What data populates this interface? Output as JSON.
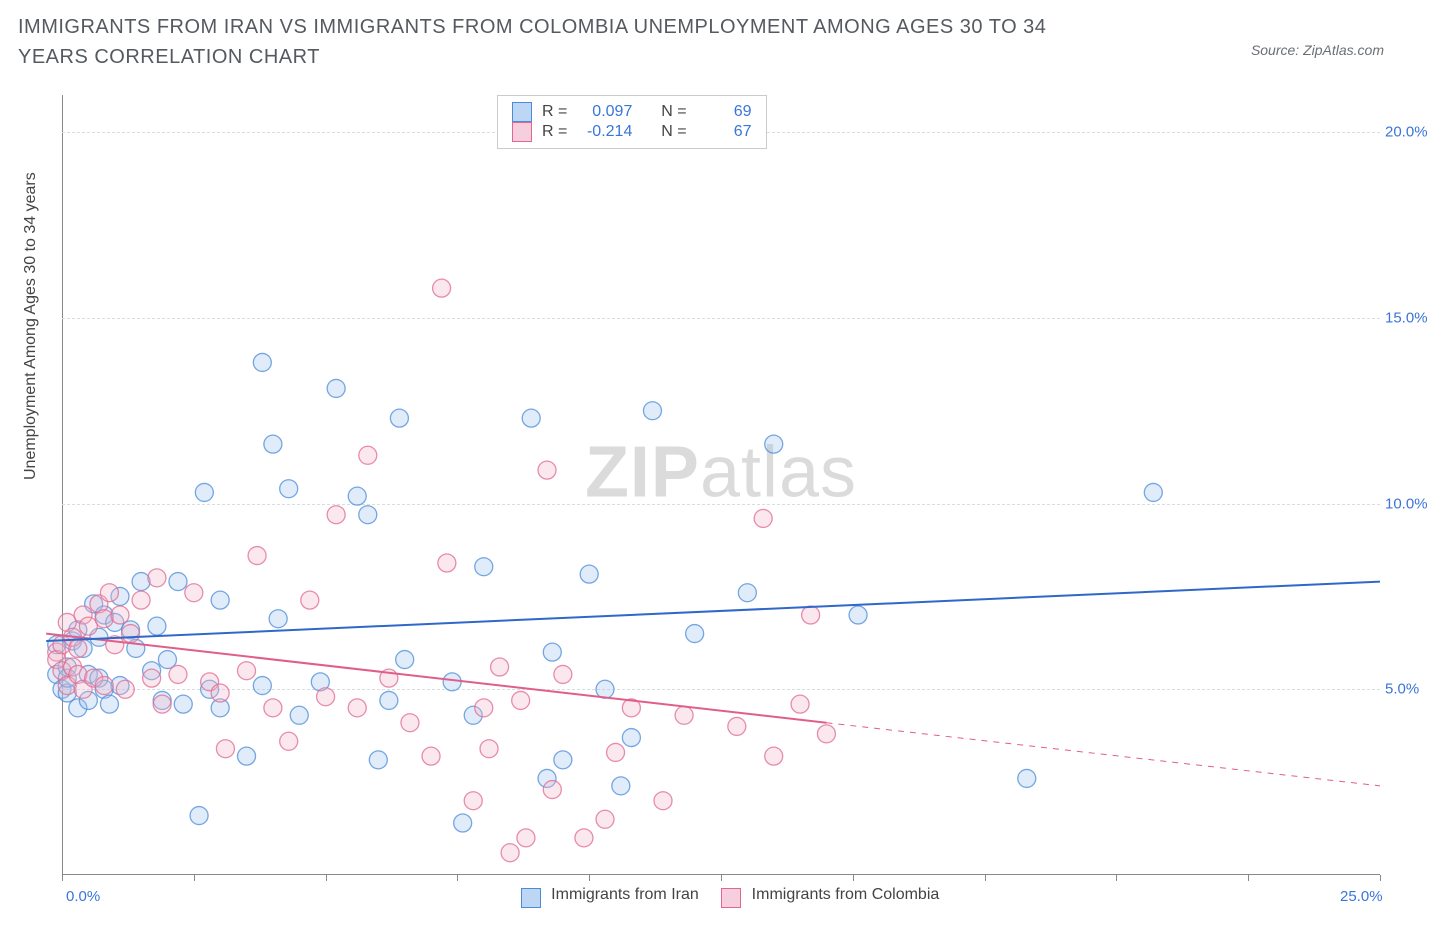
{
  "title": "IMMIGRANTS FROM IRAN VS IMMIGRANTS FROM COLOMBIA UNEMPLOYMENT AMONG AGES 30 TO 34 YEARS CORRELATION CHART",
  "source": "Source: ZipAtlas.com",
  "y_axis_label": "Unemployment Among Ages 30 to 34 years",
  "watermark_bold": "ZIP",
  "watermark_rest": "atlas",
  "chart": {
    "type": "scatter",
    "xlim": [
      0,
      25
    ],
    "ylim": [
      0,
      21
    ],
    "x_tick_positions": [
      0,
      2.5,
      5,
      7.5,
      10,
      12.5,
      15,
      17.5,
      20,
      22.5,
      25
    ],
    "x_end_labels": [
      {
        "x": 0,
        "text": "0.0%"
      },
      {
        "x": 25,
        "text": "25.0%"
      }
    ],
    "y_ticks": [
      {
        "y": 5,
        "label": "5.0%"
      },
      {
        "y": 10,
        "label": "10.0%"
      },
      {
        "y": 15,
        "label": "15.0%"
      },
      {
        "y": 20,
        "label": "20.0%"
      }
    ],
    "grid_color": "#d8dde2",
    "axis_color": "#888888",
    "background_color": "#ffffff",
    "point_radius": 9,
    "series": {
      "iran": {
        "label": "Immigrants from Iran",
        "fill": "#9fc4ef",
        "stroke": "#4b8bd8",
        "swatch_fill": "#bcd6f3",
        "swatch_border": "#4b8bd8",
        "R": "0.097",
        "N": "69",
        "trend": {
          "x1": -0.3,
          "y1": 6.3,
          "x2": 25,
          "y2": 7.9,
          "dash_after_x": 25,
          "color": "#2f68c9",
          "width": 2
        },
        "points": [
          [
            -0.1,
            6.2
          ],
          [
            -0.1,
            5.4
          ],
          [
            0.0,
            5.0
          ],
          [
            0.1,
            5.6
          ],
          [
            0.1,
            4.9
          ],
          [
            0.1,
            5.3
          ],
          [
            0.2,
            6.3
          ],
          [
            0.3,
            6.6
          ],
          [
            0.3,
            4.5
          ],
          [
            0.4,
            6.1
          ],
          [
            0.5,
            5.4
          ],
          [
            0.5,
            4.7
          ],
          [
            0.6,
            7.3
          ],
          [
            0.7,
            6.4
          ],
          [
            0.7,
            5.3
          ],
          [
            0.8,
            7.0
          ],
          [
            0.8,
            5.0
          ],
          [
            0.9,
            4.6
          ],
          [
            1.0,
            6.8
          ],
          [
            1.1,
            7.5
          ],
          [
            1.1,
            5.1
          ],
          [
            1.3,
            6.6
          ],
          [
            1.4,
            6.1
          ],
          [
            1.5,
            7.9
          ],
          [
            1.7,
            5.5
          ],
          [
            1.8,
            6.7
          ],
          [
            1.9,
            4.7
          ],
          [
            2.0,
            5.8
          ],
          [
            2.2,
            7.9
          ],
          [
            2.3,
            4.6
          ],
          [
            2.6,
            1.6
          ],
          [
            2.7,
            10.3
          ],
          [
            2.8,
            5.0
          ],
          [
            3.0,
            4.5
          ],
          [
            3.0,
            7.4
          ],
          [
            3.5,
            3.2
          ],
          [
            3.8,
            13.8
          ],
          [
            3.8,
            5.1
          ],
          [
            4.0,
            11.6
          ],
          [
            4.1,
            6.9
          ],
          [
            4.3,
            10.4
          ],
          [
            4.5,
            4.3
          ],
          [
            4.9,
            5.2
          ],
          [
            5.2,
            13.1
          ],
          [
            5.6,
            10.2
          ],
          [
            5.8,
            9.7
          ],
          [
            6.0,
            3.1
          ],
          [
            6.2,
            4.7
          ],
          [
            6.4,
            12.3
          ],
          [
            6.5,
            5.8
          ],
          [
            7.4,
            5.2
          ],
          [
            7.6,
            1.4
          ],
          [
            7.8,
            4.3
          ],
          [
            8.0,
            8.3
          ],
          [
            8.9,
            12.3
          ],
          [
            9.2,
            2.6
          ],
          [
            9.3,
            6.0
          ],
          [
            9.5,
            3.1
          ],
          [
            10.0,
            8.1
          ],
          [
            10.3,
            5.0
          ],
          [
            10.6,
            2.4
          ],
          [
            10.8,
            3.7
          ],
          [
            11.2,
            12.5
          ],
          [
            12.0,
            6.5
          ],
          [
            13.0,
            7.6
          ],
          [
            13.5,
            11.6
          ],
          [
            15.1,
            7.0
          ],
          [
            18.3,
            2.6
          ],
          [
            20.7,
            10.3
          ]
        ]
      },
      "colombia": {
        "label": "Immigrants from Colombia",
        "fill": "#f2b7cb",
        "stroke": "#e06890",
        "swatch_fill": "#f6cedd",
        "swatch_border": "#e06890",
        "R": "-0.214",
        "N": "67",
        "trend": {
          "x1": -0.3,
          "y1": 6.5,
          "x2": 14.5,
          "y2": 4.1,
          "dash_after_x": 14.5,
          "dash_x2": 25,
          "dash_y2": 2.4,
          "color": "#e05f89",
          "width": 2
        },
        "points": [
          [
            -0.1,
            6.0
          ],
          [
            -0.1,
            5.8
          ],
          [
            0.0,
            6.2
          ],
          [
            0.0,
            5.5
          ],
          [
            0.1,
            6.8
          ],
          [
            0.1,
            5.1
          ],
          [
            0.2,
            6.4
          ],
          [
            0.2,
            5.6
          ],
          [
            0.3,
            6.1
          ],
          [
            0.3,
            5.4
          ],
          [
            0.4,
            7.0
          ],
          [
            0.4,
            5.0
          ],
          [
            0.5,
            6.7
          ],
          [
            0.6,
            5.3
          ],
          [
            0.7,
            7.3
          ],
          [
            0.8,
            6.9
          ],
          [
            0.8,
            5.1
          ],
          [
            0.9,
            7.6
          ],
          [
            1.0,
            6.2
          ],
          [
            1.1,
            7.0
          ],
          [
            1.2,
            5.0
          ],
          [
            1.3,
            6.5
          ],
          [
            1.5,
            7.4
          ],
          [
            1.7,
            5.3
          ],
          [
            1.8,
            8.0
          ],
          [
            1.9,
            4.6
          ],
          [
            2.2,
            5.4
          ],
          [
            2.5,
            7.6
          ],
          [
            2.8,
            5.2
          ],
          [
            3.0,
            4.9
          ],
          [
            3.1,
            3.4
          ],
          [
            3.5,
            5.5
          ],
          [
            3.7,
            8.6
          ],
          [
            4.0,
            4.5
          ],
          [
            4.3,
            3.6
          ],
          [
            4.7,
            7.4
          ],
          [
            5.0,
            4.8
          ],
          [
            5.2,
            9.7
          ],
          [
            5.6,
            4.5
          ],
          [
            5.8,
            11.3
          ],
          [
            6.2,
            5.3
          ],
          [
            6.6,
            4.1
          ],
          [
            7.0,
            3.2
          ],
          [
            7.2,
            15.8
          ],
          [
            7.3,
            8.4
          ],
          [
            7.8,
            2.0
          ],
          [
            8.0,
            4.5
          ],
          [
            8.1,
            3.4
          ],
          [
            8.3,
            5.6
          ],
          [
            8.5,
            0.6
          ],
          [
            8.7,
            4.7
          ],
          [
            8.8,
            1.0
          ],
          [
            9.2,
            10.9
          ],
          [
            9.3,
            2.3
          ],
          [
            9.5,
            5.4
          ],
          [
            9.9,
            1.0
          ],
          [
            10.3,
            1.5
          ],
          [
            10.5,
            3.3
          ],
          [
            10.8,
            4.5
          ],
          [
            11.4,
            2.0
          ],
          [
            11.8,
            4.3
          ],
          [
            12.8,
            4.0
          ],
          [
            13.3,
            9.6
          ],
          [
            13.5,
            3.2
          ],
          [
            14.0,
            4.6
          ],
          [
            14.2,
            7.0
          ],
          [
            14.5,
            3.8
          ]
        ]
      }
    }
  }
}
